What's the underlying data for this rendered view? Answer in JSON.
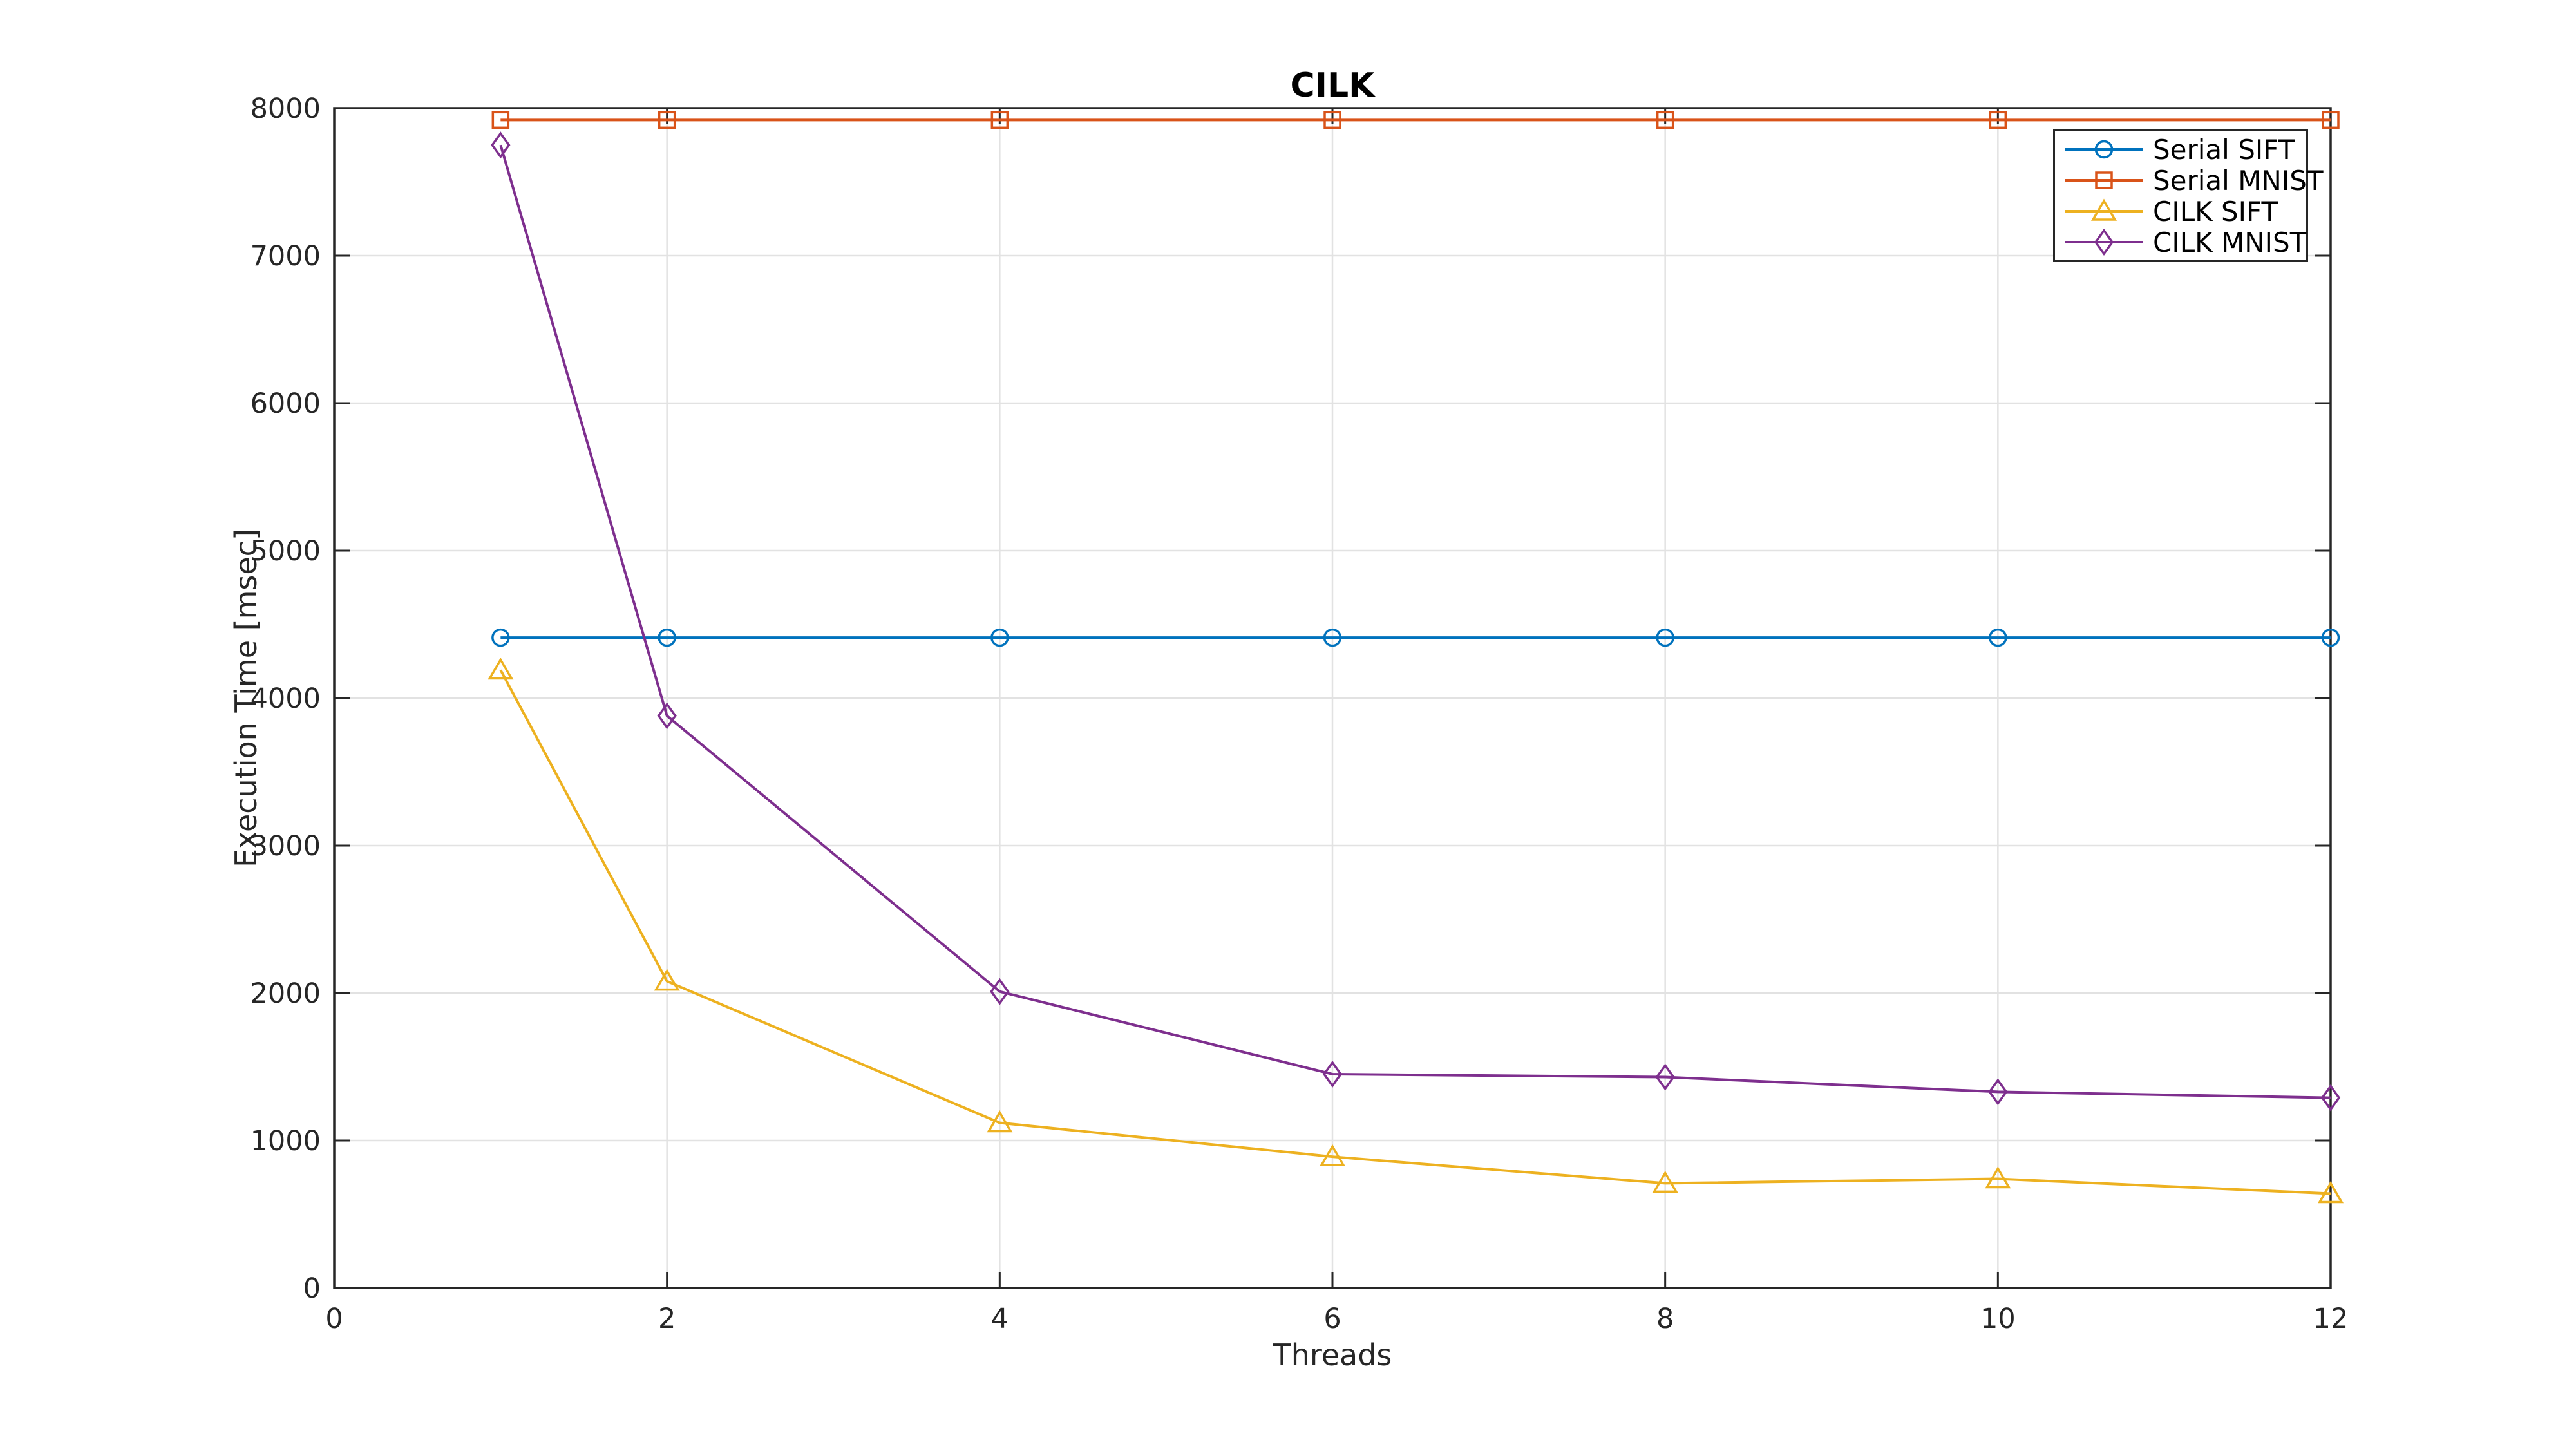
{
  "chart_data": {
    "type": "line",
    "title": "CILK",
    "xlabel": "Threads",
    "ylabel": "Execution Time [msec]",
    "x": [
      1,
      2,
      4,
      6,
      8,
      10,
      12
    ],
    "xlim": [
      0,
      12
    ],
    "ylim": [
      0,
      8000
    ],
    "xticks": [
      0,
      2,
      4,
      6,
      8,
      10,
      12
    ],
    "yticks": [
      0,
      1000,
      2000,
      3000,
      4000,
      5000,
      6000,
      7000,
      8000
    ],
    "grid": true,
    "legend_position": "top-right-inside",
    "axis_color": "#262626",
    "grid_color": "#e2e2e2",
    "background": "#ffffff",
    "series": [
      {
        "name": "Serial SIFT",
        "color": "#0072BD",
        "marker": "circle",
        "values": [
          4410,
          4410,
          4410,
          4410,
          4410,
          4410,
          4410
        ]
      },
      {
        "name": "Serial MNIST",
        "color": "#D95319",
        "marker": "square",
        "values": [
          7920,
          7920,
          7920,
          7920,
          7920,
          7920,
          7920
        ]
      },
      {
        "name": "CILK SIFT",
        "color": "#EDB120",
        "marker": "triangle",
        "values": [
          4190,
          2080,
          1120,
          890,
          710,
          740,
          640
        ]
      },
      {
        "name": "CILK MNIST",
        "color": "#7E2F8E",
        "marker": "diamond",
        "values": [
          7750,
          3880,
          2010,
          1450,
          1430,
          1330,
          1290
        ]
      }
    ]
  }
}
